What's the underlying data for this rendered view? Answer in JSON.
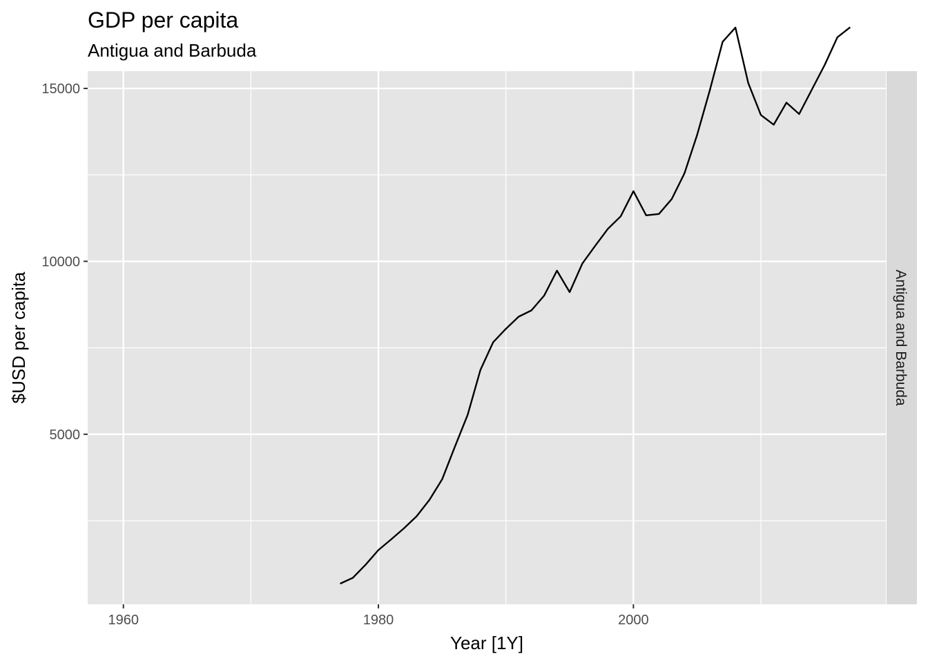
{
  "chart_data": {
    "type": "line",
    "title": "GDP per capita",
    "subtitle": "Antigua and Barbuda",
    "xlabel": "Year [1Y]",
    "ylabel": "$USD per capita",
    "facet_label": "Antigua and Barbuda",
    "xlim": [
      1957.2,
      2019.8
    ],
    "ylim": [
      83,
      15500
    ],
    "x_ticks": [
      1960,
      1980,
      2000
    ],
    "x_tick_labels": [
      "1960",
      "1980",
      "2000"
    ],
    "x_minor_ticks": [
      1970,
      1990,
      2010
    ],
    "y_ticks": [
      5000,
      10000,
      15000
    ],
    "y_tick_labels": [
      "5000",
      "10000",
      "15000"
    ],
    "y_minor_ticks": [
      2500,
      7500,
      12500
    ],
    "grid": true,
    "colors": {
      "panel": "#e5e5e5",
      "grid": "#ffffff",
      "strip": "#d9d9d9",
      "line": "#000000"
    },
    "series": [
      {
        "x": [
          1977,
          1978,
          1979,
          1980,
          1981,
          1982,
          1983,
          1984,
          1985,
          1986,
          1987,
          1988,
          1989,
          1990,
          1991,
          1992,
          1993,
          1994,
          1995,
          1996,
          1997,
          1998,
          1999,
          2000,
          2001,
          2002,
          2003,
          2004,
          2005,
          2006,
          2007,
          2008,
          2009,
          2010,
          2011,
          2012,
          2013,
          2014,
          2015,
          2016,
          2017
        ],
        "values": [
          680,
          850,
          1230,
          1650,
          1960,
          2280,
          2630,
          3100,
          3700,
          4640,
          5560,
          6860,
          7660,
          8050,
          8400,
          8580,
          9010,
          9730,
          9110,
          9940,
          10450,
          10940,
          11300,
          12030,
          11330,
          11370,
          11800,
          12540,
          13660,
          14960,
          16350,
          16760,
          15160,
          14230,
          13950,
          14590,
          14260,
          14970,
          15680,
          16480,
          16770
        ]
      }
    ]
  }
}
